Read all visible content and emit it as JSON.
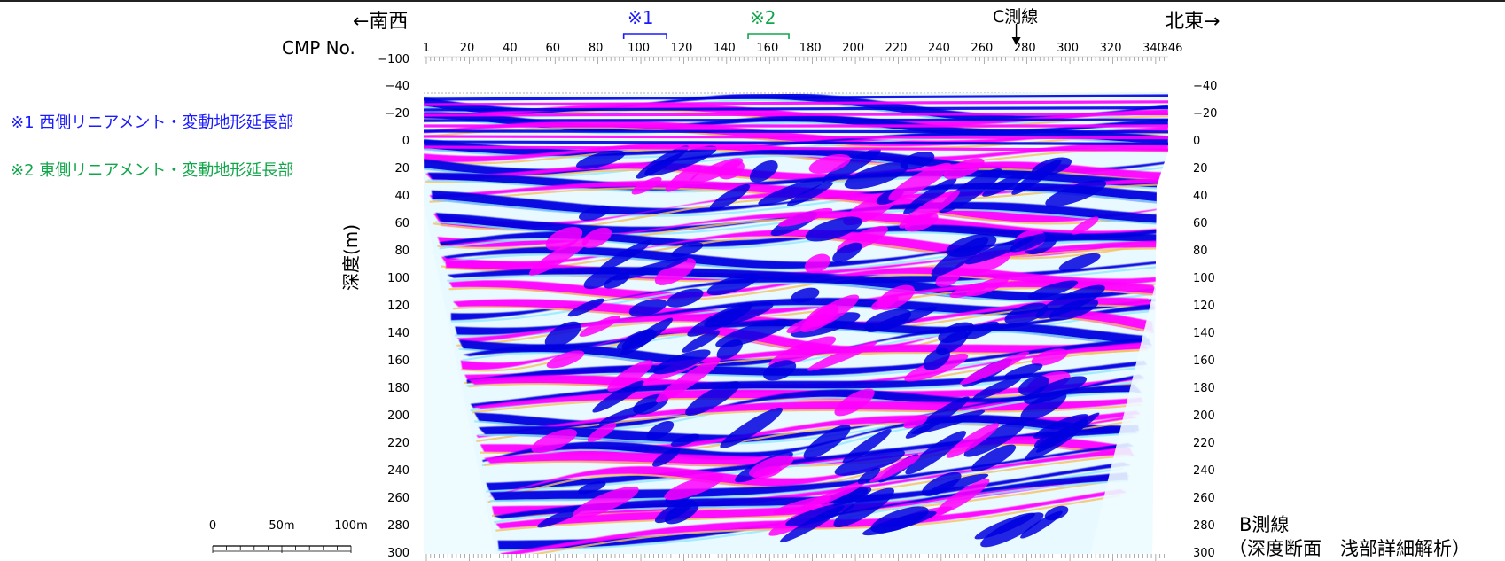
{
  "header": {
    "dir_left": "←南西",
    "dir_right": "北東→",
    "cmp_label": "CMP No.",
    "c_line": "C測線"
  },
  "markers": [
    {
      "text": "※1",
      "color": "#1a1aff"
    },
    {
      "text": "※2",
      "color": "#12a64a"
    }
  ],
  "notes": [
    {
      "text": "※1  西側リニアメント・変動地形延長部",
      "color": "#1a1aff"
    },
    {
      "text": "※2  東側リニアメント・変動地形延長部",
      "color": "#12a64a"
    }
  ],
  "cmp_ticks": [
    "1",
    "20",
    "40",
    "60",
    "80",
    "100",
    "120",
    "140",
    "160",
    "180",
    "200",
    "220",
    "240",
    "260",
    "280",
    "300",
    "320",
    "340",
    "346"
  ],
  "depth_label": "深度(m)",
  "left_ticks": [
    "−100",
    "−40",
    "−20",
    "0",
    "20",
    "40",
    "60",
    "80",
    "100",
    "120",
    "140",
    "160",
    "180",
    "200",
    "220",
    "240",
    "260",
    "280",
    "300"
  ],
  "right_ticks": [
    "−40",
    "−20",
    "0",
    "20",
    "40",
    "60",
    "80",
    "100",
    "120",
    "140",
    "160",
    "180",
    "200",
    "220",
    "240",
    "260",
    "280",
    "300"
  ],
  "scalebar": {
    "labels": [
      "0",
      "50m",
      "100m"
    ]
  },
  "caption": {
    "line1": "B測線",
    "line2": "（深度断面　浅部詳細解析）"
  },
  "colors": {
    "positive": "#ff00ff",
    "negative": "#0000e0",
    "mid_warm": "#f5c060",
    "mid_cool": "#8fe8ff"
  }
}
